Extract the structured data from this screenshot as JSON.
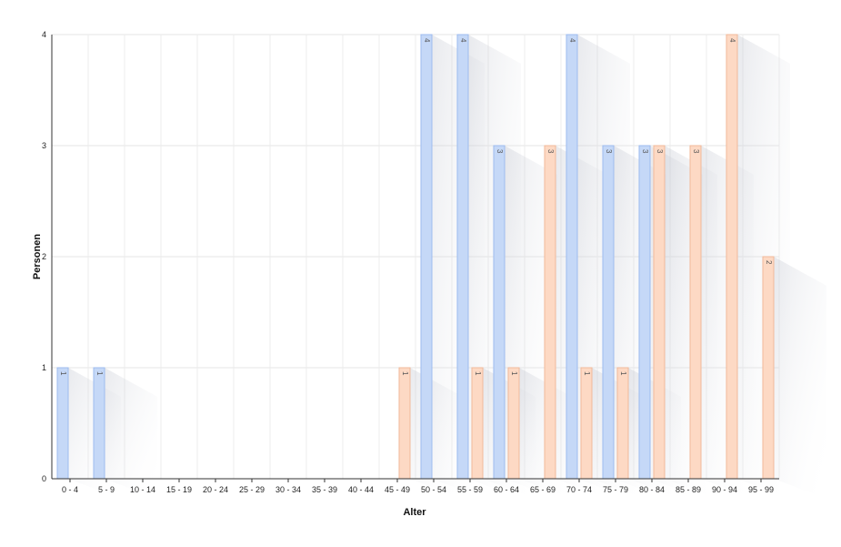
{
  "chart_data": {
    "type": "bar",
    "title": "",
    "xlabel": "Alter",
    "ylabel": "Personen",
    "categories": [
      "0 - 4",
      "5 - 9",
      "10 - 14",
      "15 - 19",
      "20 - 24",
      "25 - 29",
      "30 - 34",
      "35 - 39",
      "40 - 44",
      "45 - 49",
      "50 - 54",
      "55 - 59",
      "60 - 64",
      "65 - 69",
      "70 - 74",
      "75 - 79",
      "80 - 84",
      "85 - 89",
      "90 - 94",
      "95 - 99"
    ],
    "ylim": [
      0,
      4
    ],
    "yticks": [
      0,
      1,
      2,
      3,
      4
    ],
    "grid": true,
    "legend": "none",
    "series": [
      {
        "color": "#c5d8f7",
        "stroke": "#9dbbef",
        "values": [
          1,
          1,
          0,
          0,
          0,
          0,
          0,
          0,
          0,
          0,
          4,
          4,
          3,
          0,
          4,
          3,
          3,
          0,
          0,
          0
        ]
      },
      {
        "color": "#fdd9c4",
        "stroke": "#f1b99a",
        "values": [
          0,
          0,
          0,
          0,
          0,
          0,
          0,
          0,
          0,
          1,
          0,
          1,
          1,
          3,
          1,
          1,
          3,
          3,
          4,
          2
        ]
      }
    ]
  }
}
